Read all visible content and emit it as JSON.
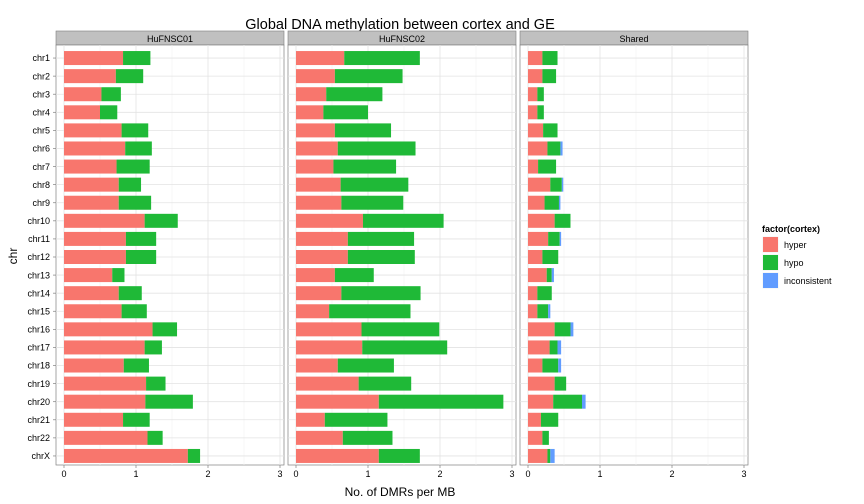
{
  "chart_data": {
    "type": "bar",
    "orientation": "horizontal",
    "stacked": true,
    "title": "Global DNA methylation between cortex and GE",
    "xlabel": "No. of DMRs per MB",
    "ylabel": "chr",
    "xlim": [
      0,
      3
    ],
    "xticks": [
      "0",
      "1",
      "2",
      "3"
    ],
    "grid": true,
    "legend_position": "right",
    "legend_title": "factor(cortex)",
    "categories": [
      "chr1",
      "chr2",
      "chr3",
      "chr4",
      "chr5",
      "chr6",
      "chr7",
      "chr8",
      "chr9",
      "chr10",
      "chr11",
      "chr12",
      "chr13",
      "chr14",
      "chr15",
      "chr16",
      "chr17",
      "chr18",
      "chr19",
      "chr20",
      "chr21",
      "chr22",
      "chrX"
    ],
    "series": [
      {
        "name": "hyper",
        "color": "#F8766D"
      },
      {
        "name": "hypo",
        "color": "#1FB937"
      },
      {
        "name": "inconsistent",
        "color": "#619CFF"
      }
    ],
    "panels": [
      {
        "label": "HuFNSC01",
        "hyper": [
          0.82,
          0.72,
          0.52,
          0.5,
          0.8,
          0.85,
          0.73,
          0.76,
          0.76,
          1.12,
          0.86,
          0.86,
          0.67,
          0.76,
          0.8,
          1.23,
          1.12,
          0.83,
          1.14,
          1.13,
          0.82,
          1.16,
          1.72
        ],
        "hypo": [
          0.38,
          0.38,
          0.27,
          0.24,
          0.37,
          0.37,
          0.46,
          0.31,
          0.45,
          0.46,
          0.42,
          0.42,
          0.17,
          0.32,
          0.35,
          0.34,
          0.24,
          0.35,
          0.27,
          0.66,
          0.37,
          0.21,
          0.17
        ],
        "inconsistent": [
          0,
          0,
          0,
          0,
          0,
          0,
          0,
          0,
          0,
          0,
          0,
          0,
          0,
          0,
          0,
          0,
          0,
          0,
          0,
          0,
          0,
          0,
          0
        ]
      },
      {
        "label": "HuFNSC02",
        "hyper": [
          0.67,
          0.54,
          0.42,
          0.38,
          0.54,
          0.58,
          0.52,
          0.62,
          0.63,
          0.93,
          0.72,
          0.72,
          0.54,
          0.63,
          0.46,
          0.91,
          0.92,
          0.58,
          0.87,
          1.15,
          0.4,
          0.65,
          1.15
        ],
        "hypo": [
          1.05,
          0.94,
          0.78,
          0.62,
          0.78,
          1.08,
          0.87,
          0.94,
          0.86,
          1.12,
          0.92,
          0.93,
          0.54,
          1.1,
          1.13,
          1.08,
          1.18,
          0.78,
          0.73,
          1.73,
          0.87,
          0.69,
          0.57
        ],
        "inconsistent": [
          0,
          0,
          0,
          0,
          0,
          0,
          0,
          0,
          0,
          0,
          0,
          0,
          0,
          0,
          0,
          0,
          0,
          0,
          0,
          0,
          0,
          0,
          0
        ]
      },
      {
        "label": "Shared",
        "hyper": [
          0.2,
          0.2,
          0.13,
          0.13,
          0.21,
          0.27,
          0.14,
          0.31,
          0.23,
          0.37,
          0.28,
          0.2,
          0.26,
          0.13,
          0.13,
          0.37,
          0.3,
          0.2,
          0.37,
          0.35,
          0.18,
          0.2,
          0.27
        ],
        "hypo": [
          0.21,
          0.19,
          0.09,
          0.09,
          0.2,
          0.18,
          0.25,
          0.16,
          0.2,
          0.22,
          0.16,
          0.22,
          0.07,
          0.2,
          0.15,
          0.22,
          0.11,
          0.22,
          0.16,
          0.4,
          0.24,
          0.09,
          0.04
        ],
        "inconsistent": [
          0,
          0,
          0,
          0,
          0,
          0.03,
          0,
          0.02,
          0.02,
          0,
          0.02,
          0,
          0.03,
          0,
          0.03,
          0.04,
          0.05,
          0.04,
          0,
          0.05,
          0,
          0,
          0.06
        ]
      }
    ]
  }
}
